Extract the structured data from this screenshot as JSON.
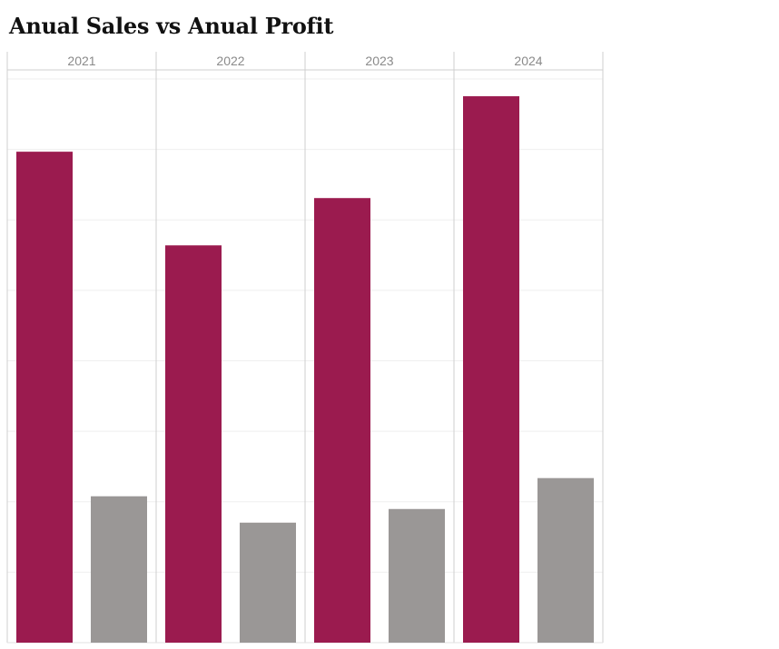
{
  "title": "Anual Sales vs Anual Profit",
  "chart_data": {
    "type": "bar",
    "title": "Anual Sales vs Anual Profit",
    "categories": [
      "2021",
      "2022",
      "2023",
      "2024"
    ],
    "series": [
      {
        "values": [
          540,
          437,
          489,
          601
        ],
        "color": "#9B1B4F"
      },
      {
        "values": [
          161,
          132,
          147,
          181
        ],
        "color": "#9A9796"
      }
    ],
    "ylim": [
      0,
      620
    ],
    "grid": true,
    "legend": "none"
  }
}
